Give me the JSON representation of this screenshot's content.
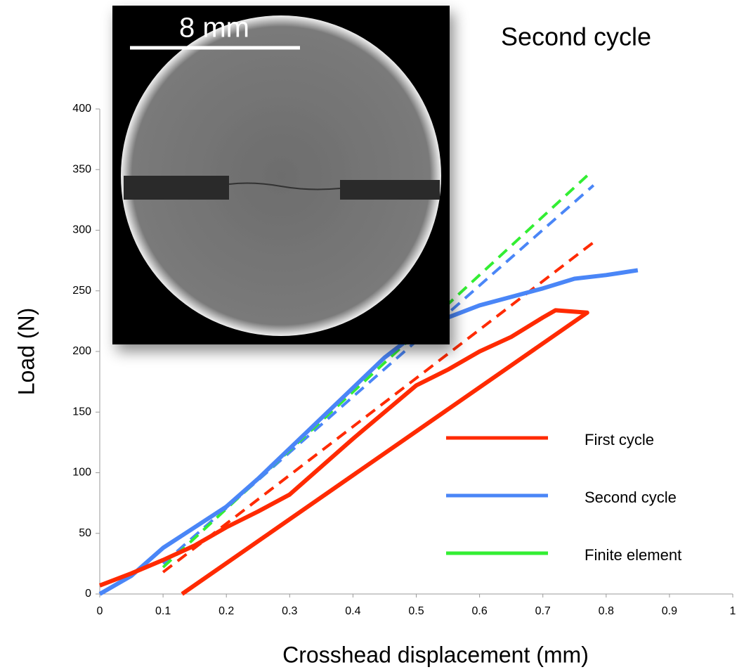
{
  "chart_data": {
    "type": "line",
    "title": "Second cycle",
    "inset_label": "8 mm",
    "x_label": "Crosshead displacement (mm)",
    "y_label": "Load (N)",
    "xlim": [
      0,
      1
    ],
    "xticks": [
      0,
      0.1,
      0.2,
      0.3,
      0.4,
      0.5,
      0.6,
      0.7,
      0.8,
      0.9,
      1
    ],
    "ylim": [
      0,
      400
    ],
    "yticks": [
      0,
      50,
      100,
      150,
      200,
      250,
      300,
      350,
      400
    ],
    "series": [
      {
        "name": "First cycle",
        "color": "#ff2a00",
        "dashed": false,
        "x": [
          0,
          0.05,
          0.1,
          0.15,
          0.2,
          0.25,
          0.3,
          0.35,
          0.4,
          0.45,
          0.5,
          0.55,
          0.6,
          0.65,
          0.7,
          0.72,
          0.77,
          0.13
        ],
        "values": [
          7,
          17,
          28,
          40,
          55,
          68,
          82,
          105,
          128,
          150,
          172,
          185,
          200,
          212,
          228,
          234,
          232,
          0
        ]
      },
      {
        "name": "Second cycle",
        "color": "#4a86f7",
        "dashed": false,
        "x": [
          0,
          0.05,
          0.1,
          0.15,
          0.2,
          0.25,
          0.3,
          0.35,
          0.4,
          0.45,
          0.5,
          0.55,
          0.6,
          0.65,
          0.7,
          0.75,
          0.8,
          0.85
        ],
        "values": [
          0,
          15,
          38,
          55,
          72,
          95,
          120,
          145,
          170,
          195,
          215,
          228,
          238,
          245,
          252,
          260,
          263,
          267
        ]
      },
      {
        "name": "Finite element",
        "color": "#33ee33",
        "dashed": true,
        "x": [
          0.1,
          0.77
        ],
        "values": [
          22,
          345
        ]
      },
      {
        "color": "#4a86f7",
        "dashed": true,
        "x": [
          0.1,
          0.78
        ],
        "values": [
          25,
          337
        ]
      },
      {
        "color": "#ff2a00",
        "dashed": true,
        "x": [
          0.1,
          0.78
        ],
        "values": [
          18,
          290
        ]
      }
    ]
  }
}
